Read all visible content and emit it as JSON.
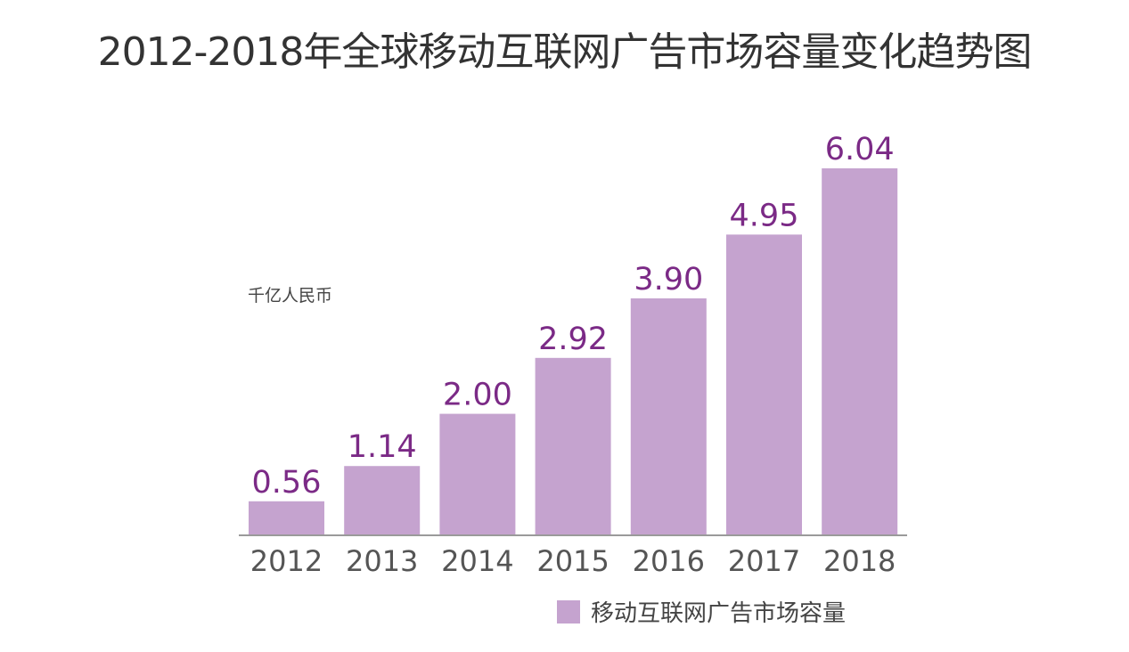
{
  "chart_data": {
    "type": "bar",
    "title": "2012-2018年全球移动互联网广告市场容量变化趋势图",
    "ylabel": "千亿人民币",
    "xlabel": "",
    "categories": [
      "2012",
      "2013",
      "2014",
      "2015",
      "2016",
      "2017",
      "2018"
    ],
    "series": [
      {
        "name": "移动互联网广告市场容量",
        "values": [
          0.56,
          1.14,
          2.0,
          2.92,
          3.9,
          4.95,
          6.04
        ],
        "labels": [
          "0.56",
          "1.14",
          "2.00",
          "2.92",
          "3.90",
          "4.95",
          "6.04"
        ]
      }
    ],
    "ylim": [
      0,
      6.2
    ],
    "grid": false,
    "legend": "bottom-right"
  },
  "colors": {
    "bar": "#c5a3cf",
    "value_label": "#7b2a86",
    "tick_label": "#555555",
    "axis": "#9a9a9a"
  }
}
